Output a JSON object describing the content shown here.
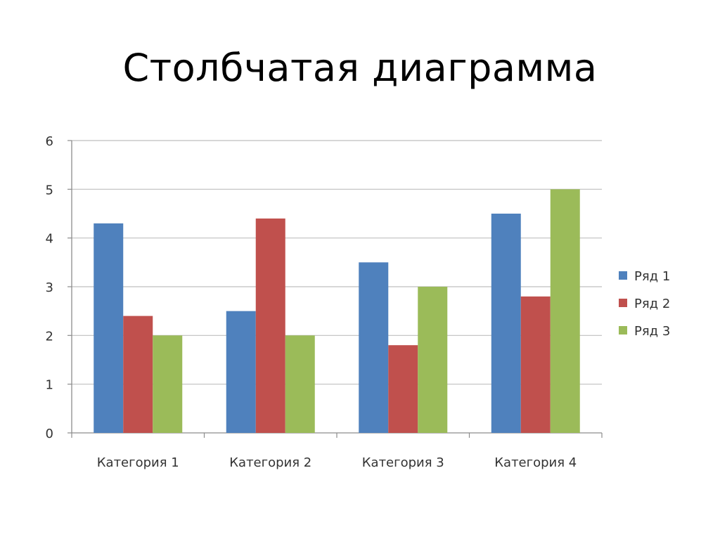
{
  "slide": {
    "title": "Столбчатая диаграмма"
  },
  "chart_data": {
    "type": "bar",
    "title": "Столбчатая диаграмма",
    "xlabel": "",
    "ylabel": "",
    "categories": [
      "Категория 1",
      "Категория 2",
      "Категория 3",
      "Категория 4"
    ],
    "series": [
      {
        "name": "Ряд 1",
        "color": "#4F81BD",
        "values": [
          4.3,
          2.5,
          3.5,
          4.5
        ]
      },
      {
        "name": "Ряд 2",
        "color": "#C0504D",
        "values": [
          2.4,
          4.4,
          1.8,
          2.8
        ]
      },
      {
        "name": "Ряд 3",
        "color": "#9BBB59",
        "values": [
          2,
          2,
          3,
          5
        ]
      }
    ],
    "ylim": [
      0,
      6
    ],
    "yticks": [
      "0",
      "1",
      "2",
      "3",
      "4",
      "5",
      "6"
    ],
    "grid": true,
    "legend": "right"
  }
}
